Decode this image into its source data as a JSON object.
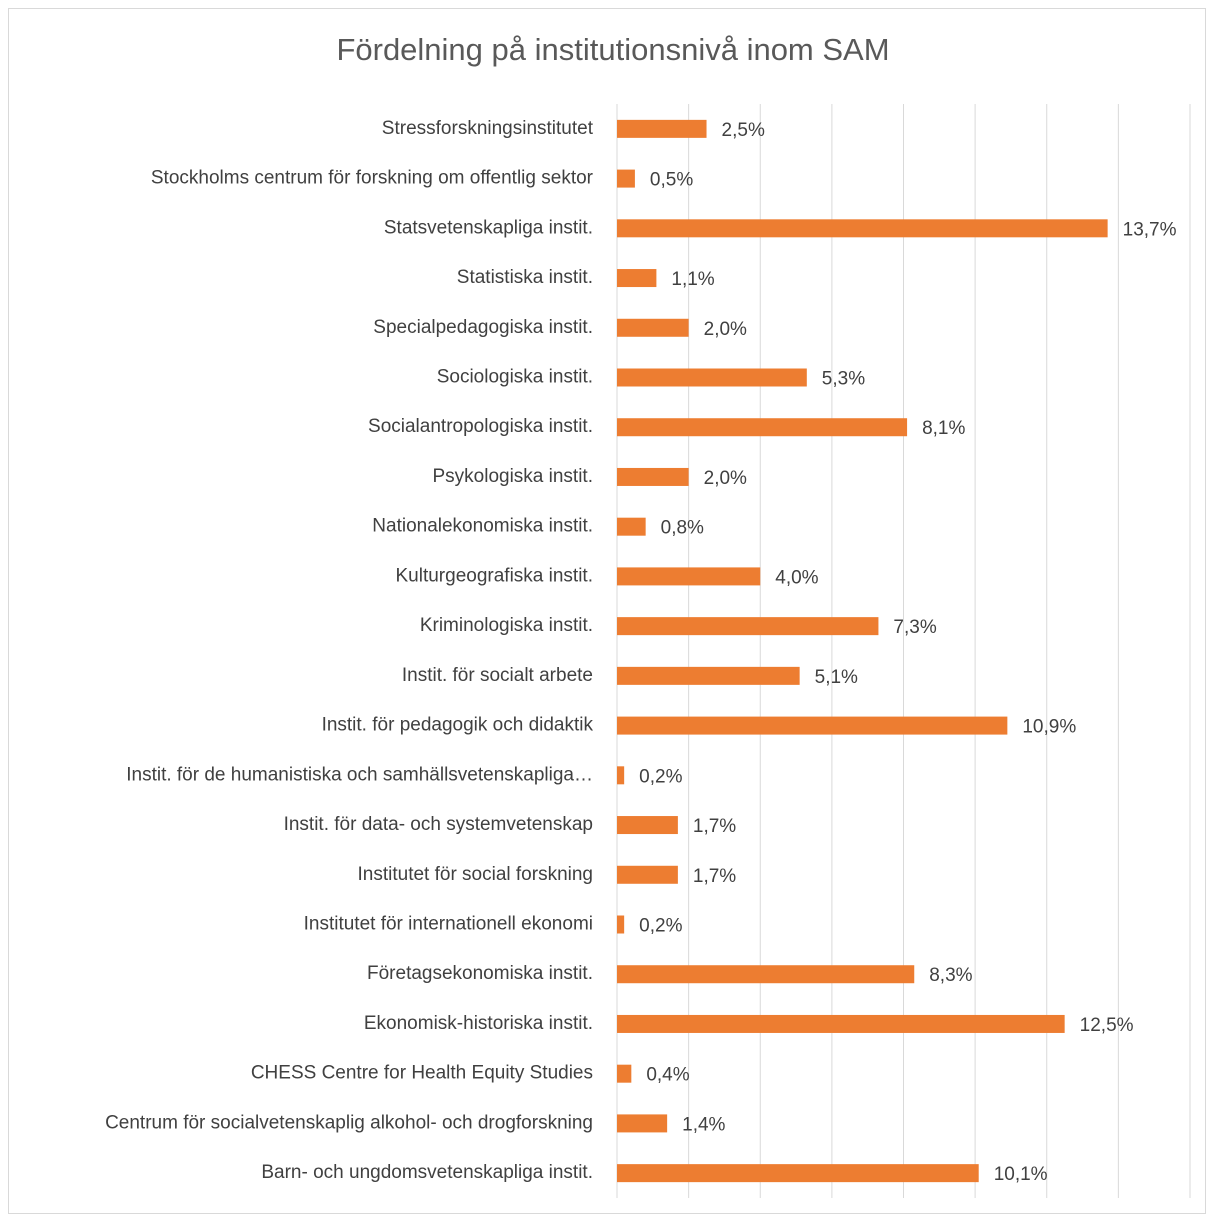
{
  "chart_data": {
    "type": "bar",
    "orientation": "horizontal",
    "title": "Fördelning på institutionsnivå inom SAM",
    "categories": [
      "Stressforskningsinstitutet",
      "Stockholms centrum för forskning om offentlig sektor",
      "Statsvetenskapliga instit.",
      "Statistiska instit.",
      "Specialpedagogiska instit.",
      "Sociologiska instit.",
      "Socialantropologiska instit.",
      "Psykologiska instit.",
      "Nationalekonomiska instit.",
      "Kulturgeografiska instit.",
      "Kriminologiska instit.",
      "Instit. för socialt arbete",
      "Instit. för pedagogik och didaktik",
      "Instit. för de humanistiska och samhällsvetenskapliga…",
      "Instit. för data- och systemvetenskap",
      "Institutet för social forskning",
      "Institutet för internationell ekonomi",
      "Företagsekonomiska instit.",
      "Ekonomisk-historiska instit.",
      "CHESS Centre for Health Equity Studies",
      "Centrum för socialvetenskaplig alkohol- och drogforskning",
      "Barn- och ungdomsvetenskapliga instit."
    ],
    "values": [
      2.5,
      0.5,
      13.7,
      1.1,
      2.0,
      5.3,
      8.1,
      2.0,
      0.8,
      4.0,
      7.3,
      5.1,
      10.9,
      0.2,
      1.7,
      1.7,
      0.2,
      8.3,
      12.5,
      0.4,
      1.4,
      10.1
    ],
    "value_labels": [
      "2,5%",
      "0,5%",
      "13,7%",
      "1,1%",
      "2,0%",
      "5,3%",
      "8,1%",
      "2,0%",
      "0,8%",
      "4,0%",
      "7,3%",
      "5,1%",
      "10,9%",
      "0,2%",
      "1,7%",
      "1,7%",
      "0,2%",
      "8,3%",
      "12,5%",
      "0,4%",
      "1,4%",
      "10,1%"
    ],
    "color": "#ed7d31",
    "xlim": [
      0,
      16
    ],
    "xticks": [
      0,
      2,
      4,
      6,
      8,
      10,
      12,
      14,
      16
    ],
    "grid": true
  }
}
